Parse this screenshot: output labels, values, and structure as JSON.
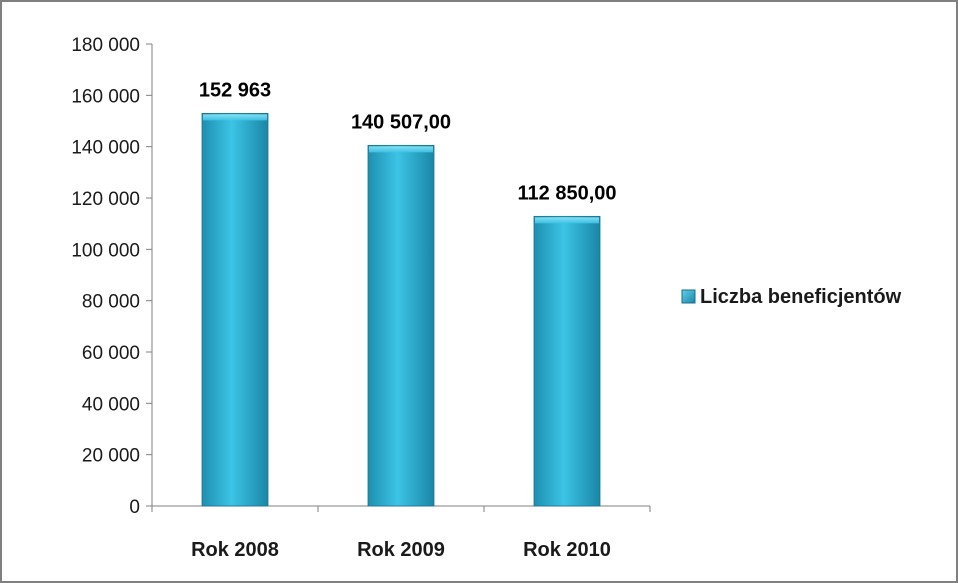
{
  "chart_data": {
    "type": "bar",
    "categories": [
      "Rok 2008",
      "Rok 2009",
      "Rok 2010"
    ],
    "series": [
      {
        "name": "Liczba beneficjentów",
        "values": [
          152963,
          140507,
          112850
        ],
        "data_labels": [
          "152 963",
          "140 507,00",
          "112 850,00"
        ],
        "color": "#2bb3d6"
      }
    ],
    "ylim": [
      0,
      180000
    ],
    "y_ticks": [
      0,
      20000,
      40000,
      60000,
      80000,
      100000,
      120000,
      140000,
      160000,
      180000
    ],
    "y_tick_labels": [
      "0",
      "20 000",
      "40 000",
      "60 000",
      "80 000",
      "100 000",
      "120 000",
      "140 000",
      "160 000",
      "180 000"
    ],
    "grid": false,
    "legend_position": "right"
  }
}
